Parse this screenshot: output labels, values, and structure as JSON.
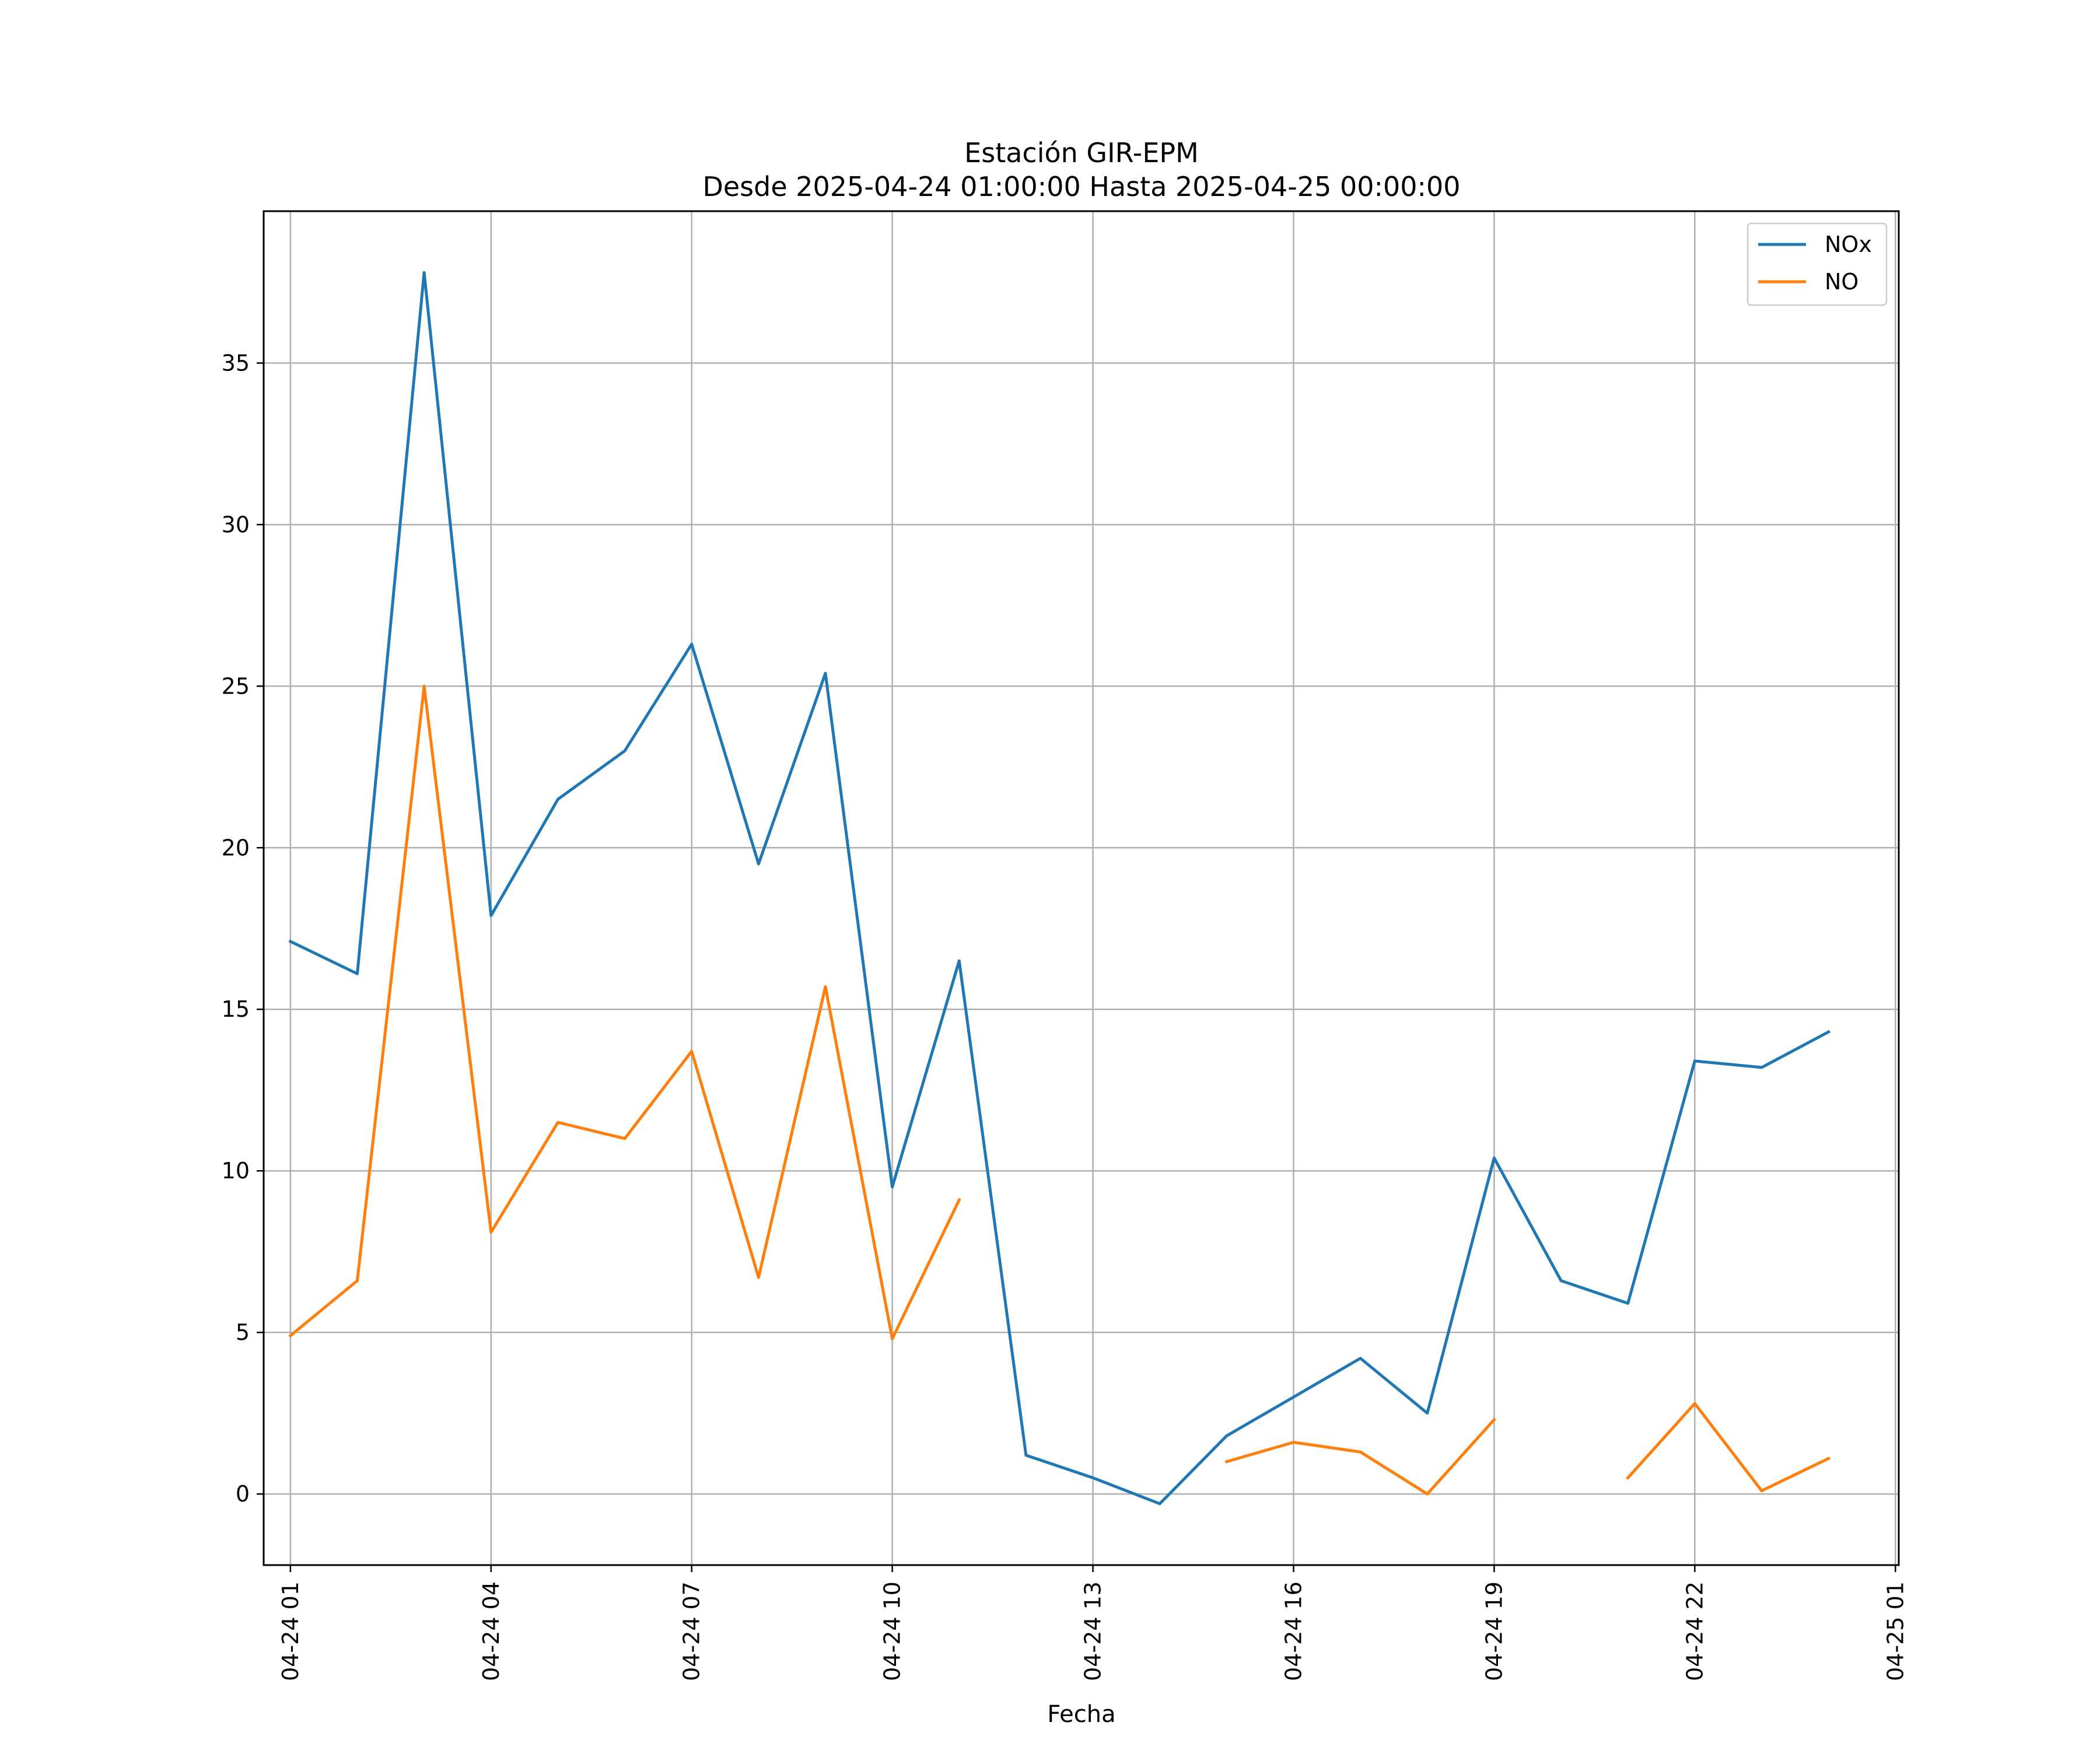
{
  "chart_data": {
    "type": "line",
    "title": "Estación GIR-EPM",
    "subtitle": "Desde 2025-04-24 01:00:00 Hasta 2025-04-25 00:00:00",
    "xlabel": "Fecha",
    "ylabel": "",
    "x_start": "2025-04-24 01:00",
    "x_step_hours": 1,
    "x": [
      "04-24 01",
      "04-24 02",
      "04-24 03",
      "04-24 04",
      "04-24 05",
      "04-24 06",
      "04-24 07",
      "04-24 08",
      "04-24 09",
      "04-24 10",
      "04-24 11",
      "04-24 12",
      "04-24 13",
      "04-24 14",
      "04-24 15",
      "04-24 16",
      "04-24 17",
      "04-24 18",
      "04-24 19",
      "04-24 20",
      "04-24 21",
      "04-24 22",
      "04-24 23",
      "04-25 00"
    ],
    "x_ticks": [
      "04-24 01",
      "04-24 04",
      "04-24 07",
      "04-24 10",
      "04-24 13",
      "04-24 16",
      "04-24 19",
      "04-24 22",
      "04-25 01"
    ],
    "y_ticks": [
      0,
      5,
      10,
      15,
      20,
      25,
      30,
      35
    ],
    "ylim": [
      -2.2,
      39.7
    ],
    "xlim": [
      "04-24 00",
      "04-25 01"
    ],
    "grid": true,
    "legend_position": "top-right",
    "series": [
      {
        "name": "NOx",
        "color": "#1f77b4",
        "values": [
          17.1,
          16.1,
          37.8,
          17.9,
          21.5,
          23.0,
          26.3,
          19.5,
          25.4,
          9.5,
          16.5,
          1.2,
          0.5,
          -0.3,
          1.8,
          3.0,
          4.2,
          2.5,
          10.4,
          6.6,
          5.9,
          13.4,
          13.2,
          14.3
        ]
      },
      {
        "name": "NO",
        "color": "#ff7f0e",
        "values": [
          4.9,
          6.6,
          25.0,
          8.1,
          11.5,
          11.0,
          13.7,
          6.7,
          15.7,
          4.8,
          9.1,
          null,
          null,
          null,
          1.0,
          1.6,
          1.3,
          0.0,
          2.3,
          null,
          0.5,
          2.8,
          0.1,
          1.1
        ]
      }
    ]
  }
}
